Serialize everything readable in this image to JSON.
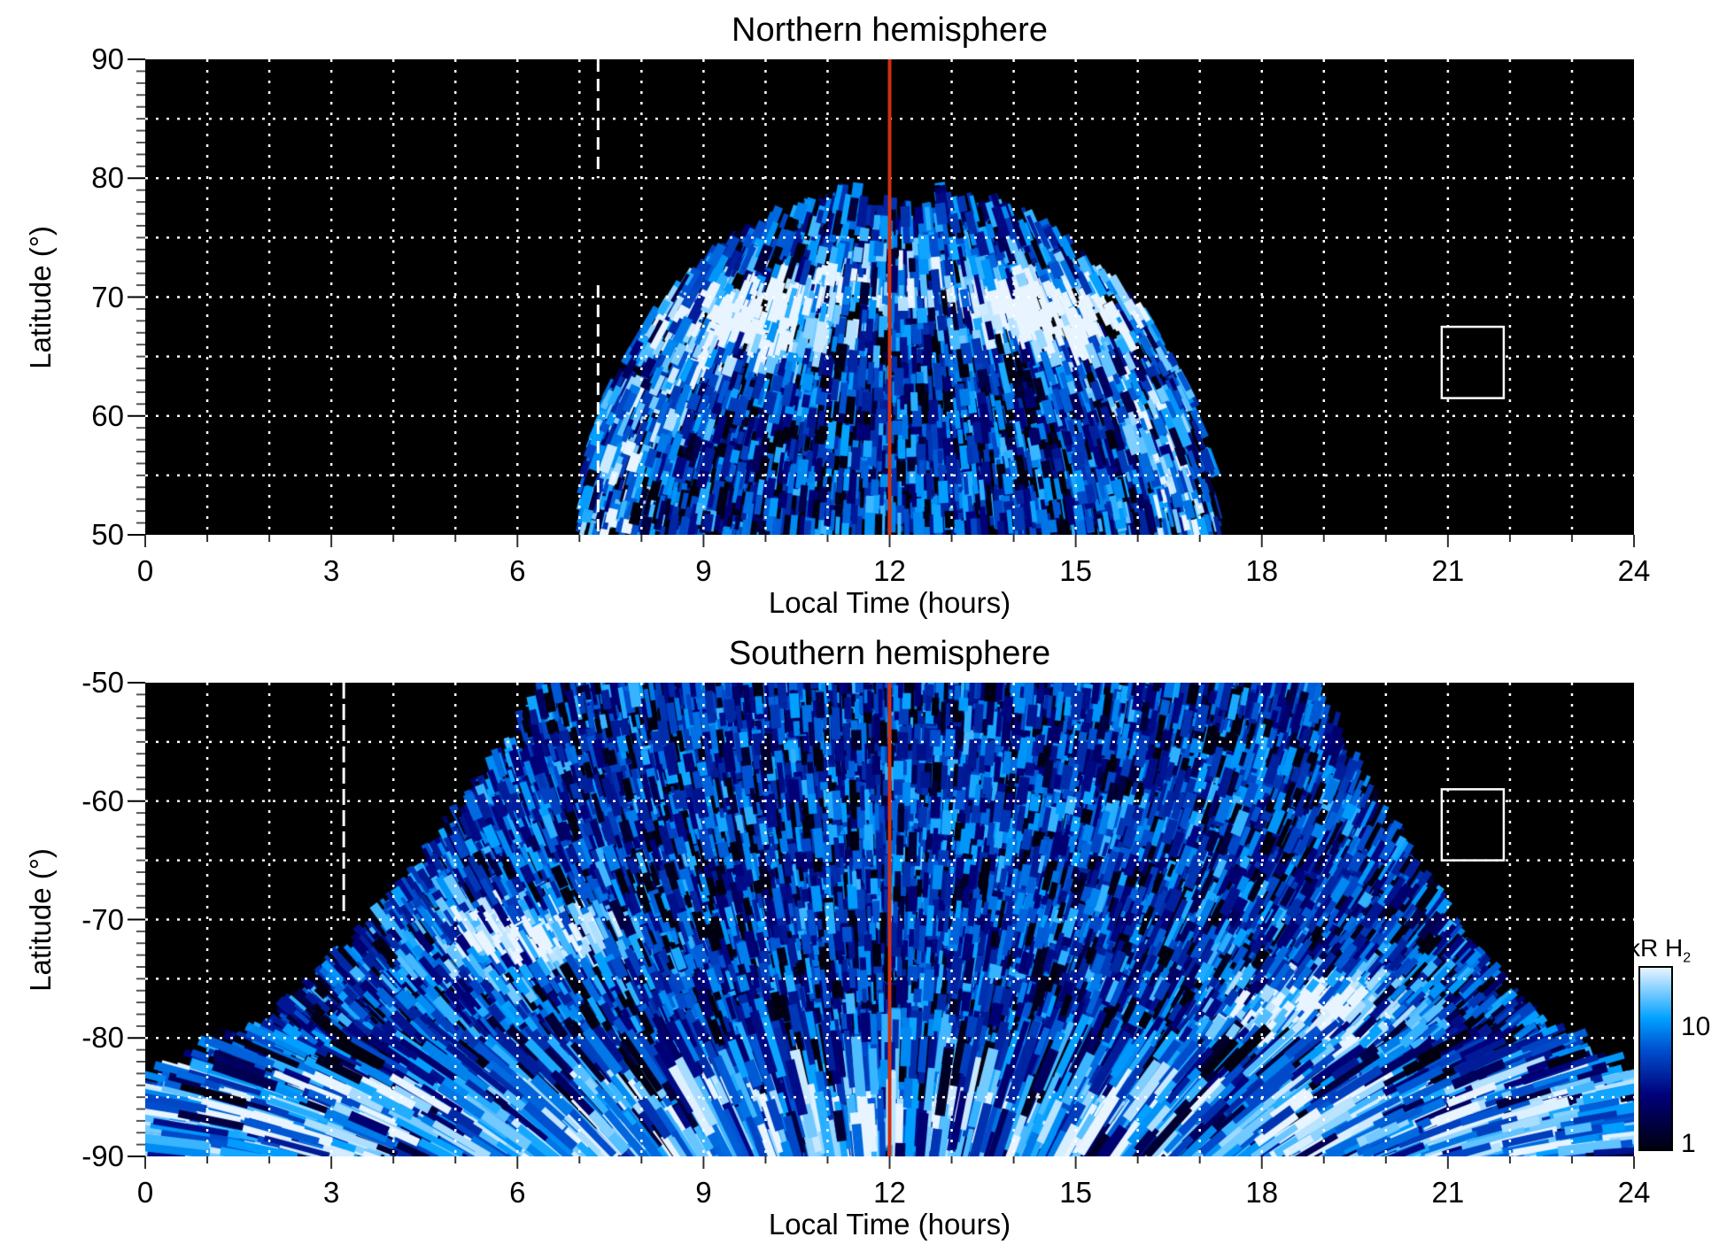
{
  "chart_data": [
    {
      "type": "heatmap",
      "title": "Northern hemisphere",
      "xlabel": "Local Time (hours)",
      "ylabel": "Latitude (°)",
      "xlim": [
        0,
        24
      ],
      "ylim": [
        50,
        90
      ],
      "xticks": [
        "0",
        "3",
        "6",
        "9",
        "12",
        "15",
        "18",
        "21",
        "24"
      ],
      "yticks": [
        "50",
        "60",
        "70",
        "80",
        "90"
      ],
      "grid": true,
      "noon_line_lt": 12,
      "dashed_line_lt": 7.3,
      "box": {
        "lt": [
          20.9,
          21.9
        ],
        "lat": [
          61.5,
          67.5
        ]
      },
      "emission_region": {
        "lt_range": [
          7.0,
          17.3
        ],
        "max_lat": 79
      },
      "bright_features": [
        {
          "lt": 9.8,
          "lat": 68
        },
        {
          "lt": 14.8,
          "lat": 69
        }
      ]
    },
    {
      "type": "heatmap",
      "title": "Southern hemisphere",
      "xlabel": "Local Time (hours)",
      "ylabel": "Latitude (°)",
      "xlim": [
        0,
        24
      ],
      "ylim": [
        -90,
        -50
      ],
      "xticks": [
        "0",
        "3",
        "6",
        "9",
        "12",
        "15",
        "18",
        "21",
        "24"
      ],
      "yticks": [
        "-90",
        "-80",
        "-70",
        "-60",
        "-50"
      ],
      "grid": true,
      "noon_line_lt": 12,
      "dashed_line_lt": 3.2,
      "box": {
        "lt": [
          20.9,
          21.9
        ],
        "lat": [
          -65,
          -59
        ]
      },
      "emission_region": {
        "lt_range": [
          0,
          24
        ],
        "max_lat": -50
      },
      "bright_features": [
        {
          "lt": 6.0,
          "lat": -71.5
        },
        {
          "lt": 18.8,
          "lat": -78
        }
      ]
    }
  ],
  "colorbar": {
    "label": "kR H",
    "label_sub": "2",
    "ticks": [
      "1",
      "10"
    ],
    "range": [
      1,
      30
    ],
    "scale": "log",
    "colors": [
      "#000010",
      "#00007a",
      "#0050d0",
      "#00a0ff",
      "#e8f4ff"
    ]
  },
  "colors": {
    "noon_line": "#d03010",
    "background": "#000000",
    "grid": "#ffffff"
  }
}
